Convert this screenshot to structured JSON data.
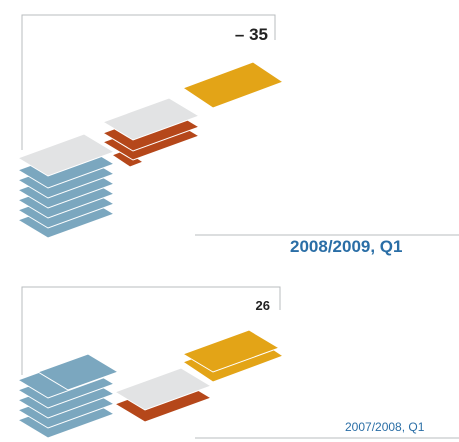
{
  "panels": [
    {
      "value": "– 35",
      "period": "2008/2009, Q1"
    },
    {
      "value": "26",
      "period": "2007/2008, Q1"
    }
  ]
}
